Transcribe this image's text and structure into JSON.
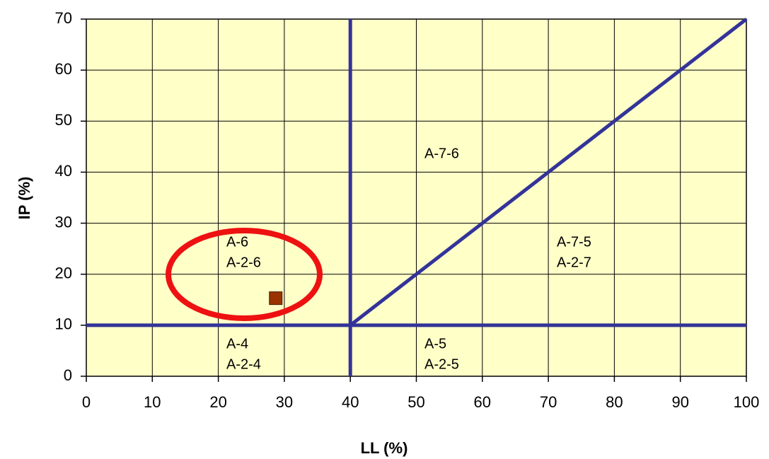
{
  "chart_data": {
    "type": "scatter",
    "xlabel": "LL (%)",
    "ylabel": "IP (%)",
    "xlim": [
      0,
      100
    ],
    "ylim": [
      0,
      70
    ],
    "xticks": [
      0,
      10,
      20,
      30,
      40,
      50,
      60,
      70,
      80,
      90,
      100
    ],
    "yticks": [
      0,
      10,
      20,
      30,
      40,
      50,
      60,
      70
    ],
    "grid": true,
    "background": "#ffffc8",
    "series": [
      {
        "color": "#993300",
        "x": [
          28.7
        ],
        "y": [
          15.3
        ]
      }
    ],
    "boundary_color": "#333399",
    "boundaries": [
      {
        "x": [
          40,
          40
        ],
        "y": [
          0,
          70
        ]
      },
      {
        "x": [
          0,
          100
        ],
        "y": [
          10,
          10
        ]
      },
      {
        "x": [
          40,
          100
        ],
        "y": [
          10,
          70
        ]
      }
    ],
    "annotations": [
      [
        "A-7-6"
      ],
      [
        "A-6",
        "A-2-6"
      ],
      [
        "A-7-5",
        "A-2-7"
      ],
      [
        "A-4",
        "A-2-4"
      ],
      [
        "A-5",
        "A-2-5"
      ]
    ]
  }
}
